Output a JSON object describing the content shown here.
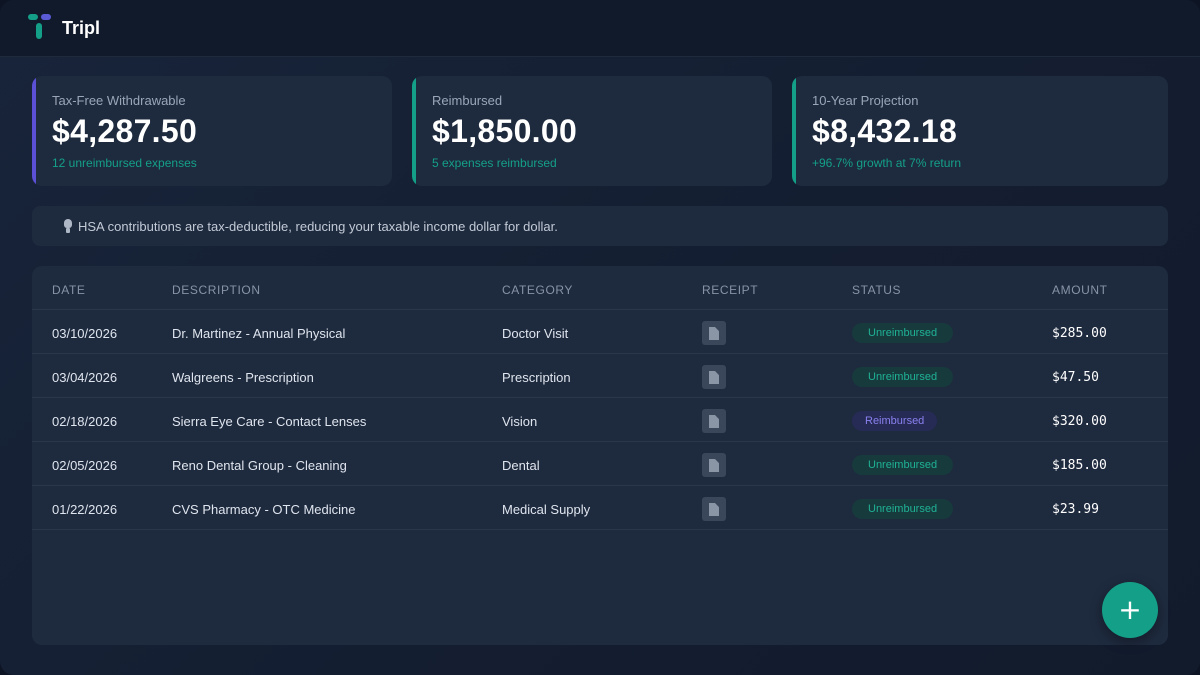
{
  "app": {
    "name": "Tripl"
  },
  "colors": {
    "accent_teal": "#14a088",
    "accent_purple": "#5b50d6",
    "background": "#141e31",
    "card": "#1e2a3e"
  },
  "cards": [
    {
      "label": "Tax-Free Withdrawable",
      "value": "$4,287.50",
      "sub": "12 unreimbursed expenses",
      "accent": "#5b50d6"
    },
    {
      "label": "Reimbursed",
      "value": "$1,850.00",
      "sub": "5 expenses reimbursed",
      "accent": "#14a088"
    },
    {
      "label": "10-Year Projection",
      "value": "$8,432.18",
      "sub": "+96.7% growth at 7% return",
      "accent": "#14a088"
    }
  ],
  "tip": {
    "icon": "lightbulb-icon",
    "text": "HSA contributions are tax-deductible, reducing your taxable income dollar for dollar."
  },
  "table": {
    "columns": [
      "Date",
      "Description",
      "Category",
      "Receipt",
      "Status",
      "Amount"
    ],
    "rows": [
      {
        "date": "03/10/2026",
        "description": "Dr. Martinez - Annual Physical",
        "category": "Doctor Visit",
        "receipt_icon": "document-icon",
        "status": "Unreimbursed",
        "amount": "$285.00"
      },
      {
        "date": "03/04/2026",
        "description": "Walgreens - Prescription",
        "category": "Prescription",
        "receipt_icon": "document-icon",
        "status": "Unreimbursed",
        "amount": "$47.50"
      },
      {
        "date": "02/18/2026",
        "description": "Sierra Eye Care - Contact Lenses",
        "category": "Vision",
        "receipt_icon": "document-icon",
        "status": "Reimbursed",
        "amount": "$320.00"
      },
      {
        "date": "02/05/2026",
        "description": "Reno Dental Group - Cleaning",
        "category": "Dental",
        "receipt_icon": "document-icon",
        "status": "Unreimbursed",
        "amount": "$185.00"
      },
      {
        "date": "01/22/2026",
        "description": "CVS Pharmacy - OTC Medicine",
        "category": "Medical Supply",
        "receipt_icon": "document-icon",
        "status": "Unreimbursed",
        "amount": "$23.99"
      }
    ]
  },
  "fab": {
    "icon": "plus-icon",
    "label": "+"
  }
}
